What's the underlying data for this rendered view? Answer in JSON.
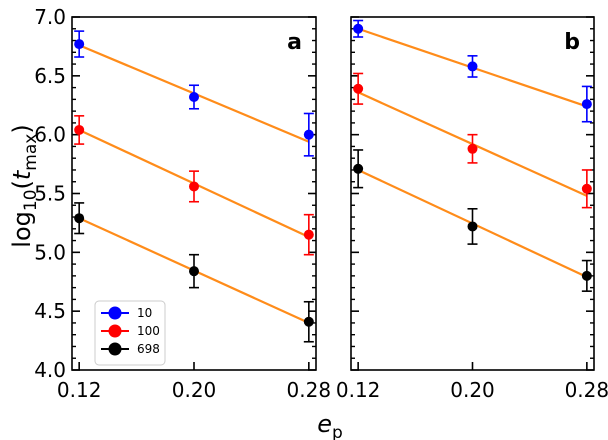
{
  "chart_data": {
    "type": "scatter",
    "ylabel": "log",
    "ylabel_sub": "10",
    "ylabel_var": "t",
    "ylabel_var_sub": "max",
    "xlabel": "e",
    "xlabel_sub": "p",
    "x_ticks": [
      0.12,
      0.2,
      0.28
    ],
    "x_tick_labels": [
      "0.12",
      "0.20",
      "0.28"
    ],
    "y_ticks": [
      4.0,
      4.5,
      5.0,
      5.5,
      6.0,
      6.5,
      7.0
    ],
    "y_tick_labels": [
      "4.0",
      "4.5",
      "5.0",
      "5.5",
      "6.0",
      "6.5",
      "7.0"
    ],
    "xlim": [
      0.115,
      0.285
    ],
    "ylim": [
      4.0,
      7.0
    ],
    "fit_color": "#ff8c1a",
    "legend": {
      "placement": "lower-left",
      "entries": [
        {
          "label": "10",
          "color": "#0000ff"
        },
        {
          "label": "100",
          "color": "#ff0000"
        },
        {
          "label": "698",
          "color": "#000000"
        }
      ]
    },
    "panels": [
      {
        "label": "a",
        "series": [
          {
            "name": "10",
            "color": "#0000ff",
            "x": [
              0.12,
              0.2,
              0.28
            ],
            "y": [
              6.77,
              6.32,
              6.0
            ],
            "err": [
              0.11,
              0.1,
              0.18
            ],
            "fit": [
              6.76,
              5.94
            ]
          },
          {
            "name": "100",
            "color": "#ff0000",
            "x": [
              0.12,
              0.2,
              0.28
            ],
            "y": [
              6.04,
              5.56,
              5.15
            ],
            "err": [
              0.12,
              0.13,
              0.17
            ],
            "fit": [
              6.04,
              5.13
            ]
          },
          {
            "name": "698",
            "color": "#000000",
            "x": [
              0.12,
              0.2,
              0.28
            ],
            "y": [
              5.29,
              4.84,
              4.41
            ],
            "err": [
              0.13,
              0.14,
              0.17
            ],
            "fit": [
              5.29,
              4.4
            ]
          }
        ]
      },
      {
        "label": "b",
        "series": [
          {
            "name": "10",
            "color": "#0000ff",
            "x": [
              0.12,
              0.2,
              0.28
            ],
            "y": [
              6.9,
              6.58,
              6.26
            ],
            "err": [
              0.07,
              0.09,
              0.15
            ],
            "fit": [
              6.9,
              6.24
            ]
          },
          {
            "name": "100",
            "color": "#ff0000",
            "x": [
              0.12,
              0.2,
              0.28
            ],
            "y": [
              6.39,
              5.88,
              5.54
            ],
            "err": [
              0.13,
              0.12,
              0.16
            ],
            "fit": [
              6.36,
              5.48
            ]
          },
          {
            "name": "698",
            "color": "#000000",
            "x": [
              0.12,
              0.2,
              0.28
            ],
            "y": [
              5.71,
              5.22,
              4.8
            ],
            "err": [
              0.16,
              0.15,
              0.13
            ],
            "fit": [
              5.7,
              4.79
            ]
          }
        ]
      }
    ]
  }
}
